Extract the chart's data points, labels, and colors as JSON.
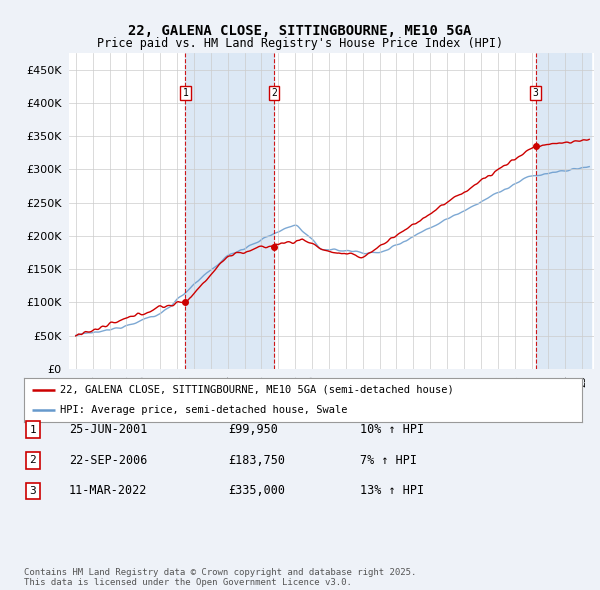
{
  "title": "22, GALENA CLOSE, SITTINGBOURNE, ME10 5GA",
  "subtitle": "Price paid vs. HM Land Registry's House Price Index (HPI)",
  "legend_property": "22, GALENA CLOSE, SITTINGBOURNE, ME10 5GA (semi-detached house)",
  "legend_hpi": "HPI: Average price, semi-detached house, Swale",
  "footer_line1": "Contains HM Land Registry data © Crown copyright and database right 2025.",
  "footer_line2": "This data is licensed under the Open Government Licence v3.0.",
  "transactions": [
    {
      "num": 1,
      "date": "25-JUN-2001",
      "price": "£99,950",
      "hpi": "10% ↑ HPI"
    },
    {
      "num": 2,
      "date": "22-SEP-2006",
      "price": "£183,750",
      "hpi": "7% ↑ HPI"
    },
    {
      "num": 3,
      "date": "11-MAR-2022",
      "price": "£335,000",
      "hpi": "13% ↑ HPI"
    }
  ],
  "transaction_years": [
    2001.5,
    2006.75,
    2022.25
  ],
  "transaction_prices": [
    99950,
    183750,
    335000
  ],
  "ylim": [
    0,
    475000
  ],
  "yticks": [
    0,
    50000,
    100000,
    150000,
    200000,
    250000,
    300000,
    350000,
    400000,
    450000
  ],
  "xstart": 1995,
  "xend": 2025,
  "background_color": "#eef2f8",
  "plot_bg_color": "#ffffff",
  "red_color": "#cc0000",
  "blue_color": "#6699cc",
  "vline_color": "#cc0000",
  "grid_color": "#cccccc",
  "span_color": "#dce8f5"
}
